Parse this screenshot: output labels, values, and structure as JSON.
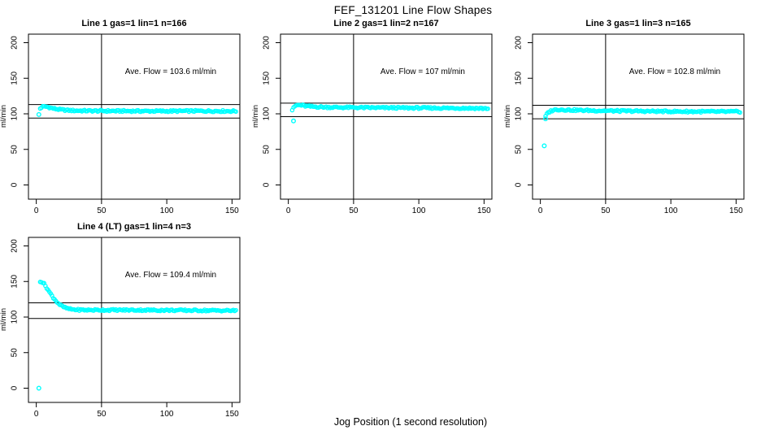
{
  "page": {
    "title": "FEF_131201  Line Flow Shapes",
    "xlabel": "Jog Position (1 second resolution)"
  },
  "chart_data": {
    "type": "scatter",
    "point_color": "#00FFFF",
    "line_color": "#000000",
    "xlim": [
      -6,
      156
    ],
    "ylim": [
      -20,
      212
    ],
    "x_ticks": [
      0,
      50,
      100,
      150
    ],
    "y_ticks": [
      0,
      50,
      100,
      150,
      200
    ],
    "ylabel": "ml/min",
    "xlabel": "Jog Position (1 second resolution)",
    "vline_x": 50,
    "annotation_pos": [
      103,
      156
    ],
    "legend": "none",
    "grid": false,
    "panels": [
      {
        "title": "Line 1 gas=1 lin=1 n=166",
        "annotation": "Ave. Flow =  103.6  ml/min",
        "ave_flow_ml_min": 103.6,
        "n": 166,
        "hlines": [
          113,
          94
        ],
        "outliers": [
          [
            2,
            99
          ]
        ],
        "band": {
          "x_start": 3,
          "x_end": 153,
          "samples": [
            [
              3,
              107.5
            ],
            [
              4,
              109
            ],
            [
              5,
              110
            ],
            [
              7,
              110.2
            ],
            [
              9,
              109.5
            ],
            [
              12,
              108
            ],
            [
              15,
              106.8
            ],
            [
              19,
              105.8
            ],
            [
              24,
              105
            ],
            [
              30,
              104.5
            ],
            [
              40,
              104.2
            ],
            [
              55,
              104
            ],
            [
              75,
              103.9
            ],
            [
              100,
              103.8
            ],
            [
              125,
              104
            ],
            [
              153,
              103.8
            ]
          ]
        }
      },
      {
        "title": "Line 2 gas=1 lin=2 n=167",
        "annotation": "Ave. Flow =  107  ml/min",
        "ave_flow_ml_min": 107,
        "n": 167,
        "hlines": [
          115,
          96
        ],
        "outliers": [
          [
            4,
            90
          ]
        ],
        "band": {
          "x_start": 3,
          "x_end": 153,
          "samples": [
            [
              3,
              105.5
            ],
            [
              4,
              108
            ],
            [
              5,
              110.5
            ],
            [
              6,
              111.8
            ],
            [
              8,
              112.3
            ],
            [
              10,
              112
            ],
            [
              13,
              111
            ],
            [
              17,
              110.3
            ],
            [
              22,
              109.8
            ],
            [
              30,
              109.3
            ],
            [
              42,
              109
            ],
            [
              60,
              108.7
            ],
            [
              85,
              108.4
            ],
            [
              110,
              108.2
            ],
            [
              135,
              108
            ],
            [
              153,
              107.6
            ]
          ]
        }
      },
      {
        "title": "Line 3 gas=1 lin=3 n=165",
        "annotation": "Ave. Flow =  102.8  ml/min",
        "ave_flow_ml_min": 102.8,
        "n": 165,
        "hlines": [
          112,
          93
        ],
        "outliers": [
          [
            3,
            55
          ],
          [
            4,
            93
          ]
        ],
        "band": {
          "x_start": 4,
          "x_end": 153,
          "samples": [
            [
              4,
              96.5
            ],
            [
              5,
              99.5
            ],
            [
              6,
              101.8
            ],
            [
              8,
              104
            ],
            [
              10,
              105.3
            ],
            [
              13,
              106
            ],
            [
              17,
              105.8
            ],
            [
              22,
              105.4
            ],
            [
              30,
              105
            ],
            [
              42,
              104.5
            ],
            [
              60,
              104
            ],
            [
              85,
              103.6
            ],
            [
              110,
              103.2
            ],
            [
              135,
              103
            ],
            [
              153,
              103
            ]
          ]
        }
      },
      {
        "title": "Line 4 (LT) gas=1 lin=4 n=3",
        "annotation": "Ave. Flow =  109.4  ml/min",
        "ave_flow_ml_min": 109.4,
        "n": 3,
        "hlines": [
          120,
          98
        ],
        "outliers": [
          [
            2,
            0
          ]
        ],
        "band": {
          "x_start": 3,
          "x_end": 153,
          "samples": [
            [
              3,
              150.5
            ],
            [
              4,
              149.8
            ],
            [
              5,
              148.5
            ],
            [
              6,
              146.5
            ],
            [
              7,
              144
            ],
            [
              8,
              141.2
            ],
            [
              9,
              138.3
            ],
            [
              10,
              135.4
            ],
            [
              11,
              132.6
            ],
            [
              12,
              130
            ],
            [
              13,
              127.5
            ],
            [
              14,
              125.2
            ],
            [
              15,
              123
            ],
            [
              16,
              121
            ],
            [
              17,
              119.2
            ],
            [
              18,
              117.6
            ],
            [
              19,
              116.2
            ],
            [
              20,
              115
            ],
            [
              22,
              113.2
            ],
            [
              24,
              112
            ],
            [
              26,
              111.2
            ],
            [
              28,
              110.7
            ],
            [
              31,
              110.3
            ],
            [
              35,
              110
            ],
            [
              40,
              109.9
            ],
            [
              50,
              109.9
            ],
            [
              65,
              109.9
            ],
            [
              80,
              109.8
            ],
            [
              100,
              109.6
            ],
            [
              120,
              109.4
            ],
            [
              140,
              109.2
            ],
            [
              153,
              109
            ]
          ]
        }
      }
    ]
  }
}
